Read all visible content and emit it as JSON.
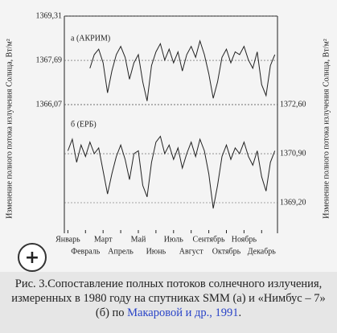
{
  "chart_data": {
    "type": "line",
    "annotations": [
      "а (АКРИМ)",
      "б (ЕРБ)"
    ],
    "ylabel": "Изменение полного потока излучения Солнца, Вт/м²",
    "y2label": "Изменение полного потока излучения Солнца, Вт/м²",
    "x": [
      0,
      0.25,
      0.5,
      0.75,
      1,
      1.25,
      1.5,
      1.75,
      2,
      2.25,
      2.5,
      2.75,
      3,
      3.25,
      3.5,
      3.75,
      4,
      4.25,
      4.5,
      4.75,
      5,
      5.25,
      5.5,
      5.75,
      6,
      6.25,
      6.5,
      6.75,
      7,
      7.25,
      7.5,
      7.75,
      8,
      8.25,
      8.5,
      8.75,
      9,
      9.25,
      9.5,
      9.75,
      10,
      10.25,
      10.5,
      10.75,
      11,
      11.25,
      11.5,
      11.75
    ],
    "xlim": [
      -0.2,
      11.9
    ],
    "xticks": [
      {
        "value": 0,
        "label": "Январь"
      },
      {
        "value": 1,
        "label": "Февраль"
      },
      {
        "value": 2,
        "label": "Март"
      },
      {
        "value": 3,
        "label": "Апрель"
      },
      {
        "value": 4,
        "label": "Май"
      },
      {
        "value": 5,
        "label": "Июнь"
      },
      {
        "value": 6,
        "label": "Июль"
      },
      {
        "value": 7,
        "label": "Август"
      },
      {
        "value": 8,
        "label": "Сентябрь"
      },
      {
        "value": 9,
        "label": "Октябрь"
      },
      {
        "value": 10,
        "label": "Ноябрь"
      },
      {
        "value": 11,
        "label": "Декабрь"
      }
    ],
    "ylim": [
      1361.36,
      1369.31
    ],
    "yticks": [
      {
        "value": 1366.07,
        "label": "1366,07"
      },
      {
        "value": 1367.69,
        "label": "1367,69"
      },
      {
        "value": 1369.31,
        "label": "1369,31"
      }
    ],
    "y2lim": [
      1368.14,
      1375.67
    ],
    "y2ticks": [
      {
        "value": 1369.2,
        "label": "1369,20"
      },
      {
        "value": 1370.9,
        "label": "1370,90"
      },
      {
        "value": 1372.6,
        "label": "1372,60"
      }
    ],
    "series": [
      {
        "name": "АКРИМ",
        "color": "#222",
        "values": [
          null,
          null,
          null,
          null,
          null,
          1367.4,
          1367.9,
          1368.1,
          1367.6,
          1366.5,
          1367.3,
          1367.9,
          1368.2,
          1367.8,
          1367.0,
          1367.6,
          1367.9,
          1366.9,
          1366.2,
          1367.5,
          1368.0,
          1368.3,
          1367.7,
          1368.1,
          1367.6,
          1368.0,
          1367.3,
          1367.9,
          1368.2,
          1367.8,
          1368.4,
          1367.9,
          1367.2,
          1366.3,
          1366.9,
          1367.8,
          1368.1,
          1367.6,
          1368.0,
          1367.9,
          1368.2,
          1367.7,
          1367.4,
          1368.0,
          1366.8,
          1366.4,
          1367.5,
          1367.9
        ]
      },
      {
        "name": "ЕРБ",
        "color": "#222",
        "axis": "y2",
        "values": [
          1371.0,
          1371.4,
          1370.6,
          1371.2,
          1370.8,
          1371.3,
          1370.9,
          1371.1,
          1370.3,
          1369.5,
          1370.2,
          1370.8,
          1371.2,
          1370.7,
          1370.0,
          1370.9,
          1371.0,
          1369.8,
          1369.4,
          1370.6,
          1371.3,
          1371.5,
          1370.9,
          1371.2,
          1370.7,
          1371.1,
          1370.4,
          1370.9,
          1371.3,
          1370.8,
          1371.4,
          1371.0,
          1370.2,
          1369.0,
          1369.8,
          1370.8,
          1371.2,
          1370.7,
          1371.1,
          1370.9,
          1371.3,
          1370.8,
          1370.5,
          1371.0,
          1370.1,
          1369.6,
          1370.6,
          1371.0
        ]
      }
    ],
    "grid": true
  },
  "zoom_button": "+",
  "caption": {
    "text": "Рис. 3.Сопоставление полных потоков солнечного излучения, измеренных в 1980 году на спутниках SMM (а) и «Нимбус – 7» (б) по ",
    "link": "Макаровой и др., 1991",
    "end": "."
  }
}
